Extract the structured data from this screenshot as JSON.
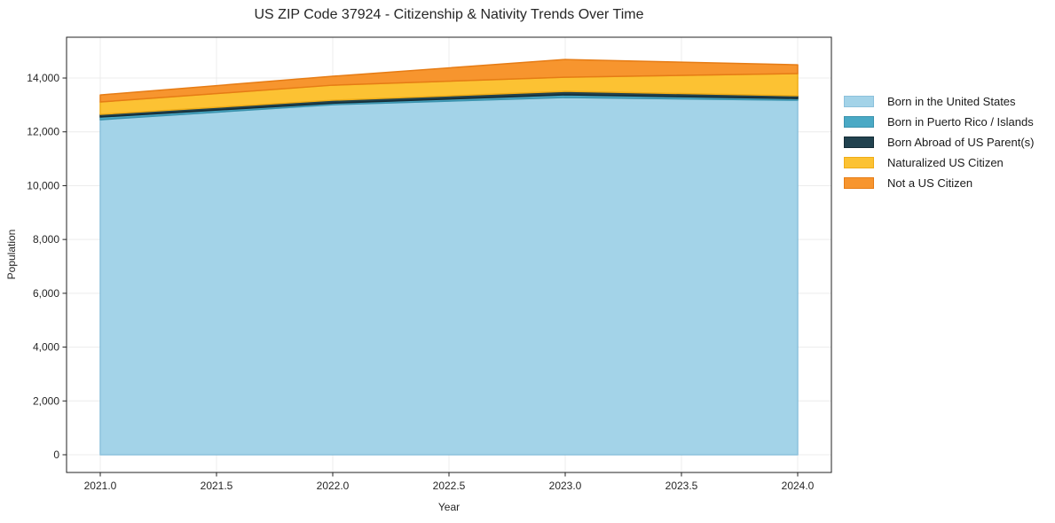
{
  "chart_data": {
    "type": "area",
    "stacked": true,
    "title": "US ZIP Code 37924 - Citizenship & Nativity Trends Over Time",
    "xlabel": "Year",
    "ylabel": "Population",
    "x": [
      2021,
      2022,
      2023,
      2024
    ],
    "series": [
      {
        "name": "Born in the United States",
        "color": "#A3D3E8",
        "edge_color": "#8CC1DC",
        "values": [
          12450,
          13010,
          13275,
          13175
        ]
      },
      {
        "name": "Born in Puerto Rico / Islands",
        "color": "#4AA9C5",
        "edge_color": "#3B93AE",
        "values": [
          100,
          55,
          100,
          65
        ]
      },
      {
        "name": "Born Abroad of US Parent(s)",
        "color": "#21424F",
        "edge_color": "#152C36",
        "values": [
          100,
          110,
          130,
          100
        ]
      },
      {
        "name": "Naturalized US Citizen",
        "color": "#FCC233",
        "edge_color": "#EFAD18",
        "values": [
          460,
          560,
          525,
          825
        ]
      },
      {
        "name": "Not a US Citizen",
        "color": "#F7952E",
        "edge_color": "#E67C15",
        "values": [
          260,
          330,
          660,
          325
        ]
      }
    ],
    "xlim": [
      2020.855,
      2024.145
    ],
    "ylim": [
      -659,
      15516
    ],
    "x_ticks": [
      2021.0,
      2021.5,
      2022.0,
      2022.5,
      2023.0,
      2023.5,
      2024.0
    ],
    "x_tick_labels": [
      "2021.0",
      "2021.5",
      "2022.0",
      "2022.5",
      "2023.0",
      "2023.5",
      "2024.0"
    ],
    "y_ticks": [
      0,
      2000,
      4000,
      6000,
      8000,
      10000,
      12000,
      14000
    ],
    "y_tick_labels": [
      "0",
      "2,000",
      "4,000",
      "6,000",
      "8,000",
      "10,000",
      "12,000",
      "14,000"
    ],
    "grid": true,
    "grid_color": "#ececec",
    "spine_color": "#222222",
    "legend_position": "right-outside"
  }
}
